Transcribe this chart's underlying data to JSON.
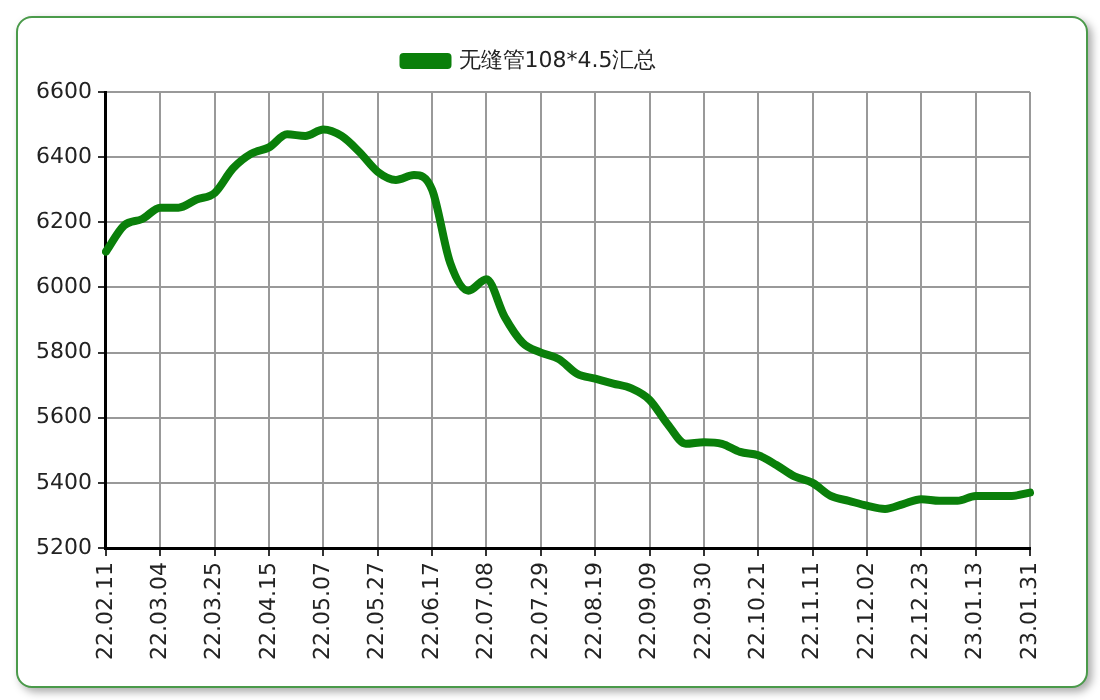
{
  "chart_data": {
    "type": "line",
    "categories": [
      "22.02.11",
      null,
      null,
      "22.03.04",
      null,
      null,
      "22.03.25",
      null,
      null,
      "22.04.15",
      null,
      null,
      "22.05.07",
      null,
      null,
      "22.05.27",
      null,
      null,
      "22.06.17",
      null,
      null,
      "22.07.08",
      null,
      null,
      "22.07.29",
      null,
      null,
      "22.08.19",
      null,
      null,
      "22.09.09",
      null,
      null,
      "22.09.30",
      null,
      null,
      "22.10.21",
      null,
      null,
      "22.11.11",
      null,
      null,
      "22.12.02",
      null,
      null,
      "22.12.23",
      null,
      null,
      "23.01.13",
      null,
      null,
      "23.01.31"
    ],
    "series": [
      {
        "name": "无缝管108*4.5汇总",
        "color": "#0a7f0a",
        "values": [
          6110,
          6190,
          6210,
          6245,
          6245,
          6270,
          6290,
          6365,
          6410,
          6430,
          6470,
          6465,
          6485,
          6465,
          6415,
          6355,
          6330,
          6345,
          6300,
          6075,
          5990,
          6025,
          5910,
          5830,
          5800,
          5780,
          5735,
          5720,
          5705,
          5690,
          5655,
          5580,
          5520,
          5525,
          5520,
          5495,
          5485,
          5455,
          5420,
          5400,
          5360,
          5345,
          5330,
          5320,
          5335,
          5350,
          5345,
          5345,
          5360,
          5360,
          5360,
          5370
        ]
      }
    ],
    "ylim": [
      5200,
      6600
    ],
    "yticks": [
      5200,
      5400,
      5600,
      5800,
      6000,
      6200,
      6400,
      6600
    ],
    "grid": true,
    "legend": "top",
    "marker": "none",
    "line_style": "solid"
  }
}
